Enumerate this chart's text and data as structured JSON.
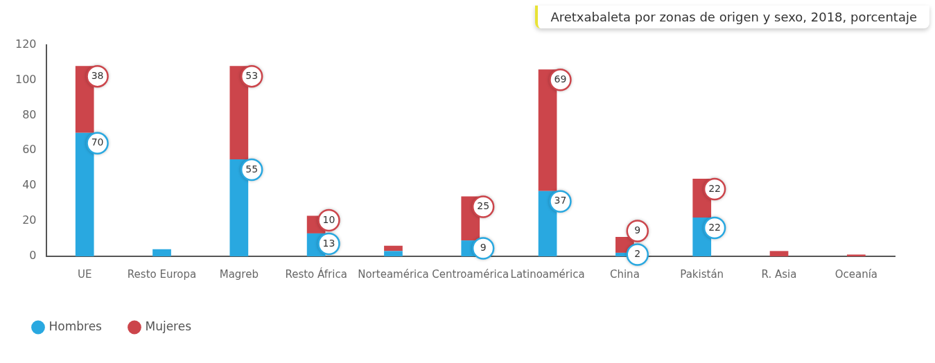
{
  "chart_data": {
    "type": "bar",
    "title": "Aretxabaleta por zonas de origen y sexo, 2018, porcentaje",
    "categories": [
      "UE",
      "Resto Europa",
      "Magreb",
      "Resto África",
      "Norteamérica",
      "Centroamérica",
      "Latinoamérica",
      "China",
      "Pakistán",
      "R. Asia",
      "Oceanía"
    ],
    "series": [
      {
        "name": "Hombres",
        "color": "#29a8e0",
        "values": [
          70,
          4,
          55,
          13,
          3,
          9,
          37,
          2,
          22,
          0,
          0
        ],
        "value_labels": [
          "70",
          null,
          "55",
          "13",
          null,
          "9",
          "37",
          "2",
          "22",
          null,
          null
        ]
      },
      {
        "name": "Mujeres",
        "color": "#cc454b",
        "values": [
          38,
          0,
          53,
          10,
          3,
          25,
          69,
          9,
          22,
          3,
          1
        ],
        "value_labels": [
          "38",
          null,
          "53",
          "10",
          null,
          "25",
          "69",
          "9",
          "22",
          null,
          null
        ]
      }
    ],
    "stacked": true,
    "ylim": [
      0,
      120
    ],
    "yticks": [
      0,
      20,
      40,
      60,
      80,
      100,
      120
    ],
    "grid": false,
    "legend": "bottom"
  }
}
